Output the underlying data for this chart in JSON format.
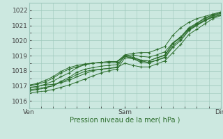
{
  "title": "",
  "xlabel": "Pression niveau de la mer( hPa )",
  "ylabel": "",
  "bg_color": "#cce8e0",
  "grid_color": "#9ec8bc",
  "line_color": "#2d6e2d",
  "marker_color": "#2d6e2d",
  "ylim": [
    1015.5,
    1022.5
  ],
  "yticks": [
    1016,
    1017,
    1018,
    1019,
    1020,
    1021,
    1022
  ],
  "xlim": [
    0,
    48
  ],
  "xtick_positions": [
    0,
    24,
    48
  ],
  "xtick_labels": [
    "Ven",
    "Sam",
    "Dim"
  ],
  "lines": [
    [
      0.0,
      1016.9,
      2.0,
      1016.95,
      4.0,
      1017.05,
      6.0,
      1017.1,
      8.0,
      1017.2,
      10.0,
      1017.35,
      12.0,
      1017.6,
      14.0,
      1017.8,
      16.0,
      1018.0,
      18.0,
      1018.1,
      20.0,
      1018.15,
      22.0,
      1018.25,
      24.0,
      1019.0,
      26.0,
      1019.05,
      28.0,
      1018.95,
      30.0,
      1018.9,
      32.0,
      1019.05,
      34.0,
      1019.25,
      36.0,
      1019.85,
      38.0,
      1020.25,
      40.0,
      1020.75,
      42.0,
      1021.05,
      44.0,
      1021.35,
      46.0,
      1021.6,
      48.0,
      1021.8
    ],
    [
      0.0,
      1016.5,
      2.0,
      1016.6,
      4.0,
      1016.65,
      6.0,
      1016.75,
      8.0,
      1016.9,
      10.0,
      1017.05,
      12.0,
      1017.25,
      14.0,
      1017.45,
      16.0,
      1017.65,
      18.0,
      1017.85,
      20.0,
      1018.0,
      22.0,
      1018.1,
      24.0,
      1018.85,
      26.0,
      1018.8,
      28.0,
      1018.65,
      30.0,
      1018.55,
      32.0,
      1018.7,
      34.0,
      1018.85,
      36.0,
      1019.55,
      38.0,
      1020.0,
      40.0,
      1020.65,
      42.0,
      1021.0,
      44.0,
      1021.3,
      46.0,
      1021.55,
      48.0,
      1021.7
    ],
    [
      0.0,
      1016.75,
      2.0,
      1016.8,
      4.0,
      1016.9,
      6.0,
      1017.0,
      8.0,
      1017.3,
      10.0,
      1017.55,
      12.0,
      1017.9,
      14.0,
      1018.1,
      16.0,
      1018.2,
      18.0,
      1018.3,
      20.0,
      1018.35,
      22.0,
      1018.4,
      24.0,
      1018.95,
      26.0,
      1018.8,
      28.0,
      1018.55,
      30.0,
      1018.5,
      32.0,
      1018.7,
      34.0,
      1018.9,
      36.0,
      1019.65,
      38.0,
      1020.1,
      40.0,
      1020.7,
      42.0,
      1021.0,
      44.0,
      1021.35,
      46.0,
      1021.55,
      48.0,
      1021.7
    ],
    [
      0.0,
      1016.85,
      2.0,
      1016.95,
      4.0,
      1017.1,
      6.0,
      1017.3,
      8.0,
      1017.6,
      10.0,
      1017.85,
      12.0,
      1018.2,
      14.0,
      1018.4,
      16.0,
      1018.5,
      18.0,
      1018.55,
      20.0,
      1018.6,
      22.0,
      1018.6,
      24.0,
      1018.95,
      26.0,
      1018.85,
      28.0,
      1018.7,
      30.0,
      1018.65,
      32.0,
      1018.85,
      34.0,
      1019.0,
      36.0,
      1019.8,
      38.0,
      1020.2,
      40.0,
      1020.8,
      42.0,
      1021.1,
      44.0,
      1021.45,
      46.0,
      1021.65,
      48.0,
      1021.8
    ],
    [
      0.0,
      1017.0,
      2.0,
      1017.1,
      4.0,
      1017.25,
      6.0,
      1017.5,
      8.0,
      1017.85,
      10.0,
      1018.1,
      12.0,
      1018.25,
      14.0,
      1018.4,
      16.0,
      1018.5,
      18.0,
      1018.55,
      20.0,
      1018.55,
      22.0,
      1018.55,
      24.0,
      1019.0,
      26.0,
      1018.9,
      28.0,
      1018.7,
      30.0,
      1018.65,
      32.0,
      1018.85,
      34.0,
      1019.05,
      36.0,
      1019.8,
      38.0,
      1020.25,
      40.0,
      1020.85,
      42.0,
      1021.15,
      44.0,
      1021.5,
      46.0,
      1021.7,
      48.0,
      1021.85
    ],
    [
      0.0,
      1017.05,
      2.0,
      1017.15,
      4.0,
      1017.35,
      6.0,
      1017.6,
      8.0,
      1017.95,
      10.0,
      1018.2,
      12.0,
      1018.35,
      14.0,
      1018.45,
      16.0,
      1018.5,
      18.0,
      1018.55,
      20.0,
      1018.6,
      22.0,
      1018.6,
      24.0,
      1019.05,
      26.0,
      1019.15,
      28.0,
      1019.2,
      30.0,
      1019.2,
      32.0,
      1019.4,
      34.0,
      1019.6,
      36.0,
      1020.35,
      38.0,
      1020.85,
      40.0,
      1021.2,
      42.0,
      1021.45,
      44.0,
      1021.6,
      46.0,
      1021.75,
      48.0,
      1021.9
    ],
    [
      0.0,
      1016.65,
      2.0,
      1016.75,
      4.0,
      1016.85,
      6.0,
      1017.0,
      8.0,
      1017.25,
      10.0,
      1017.45,
      12.0,
      1017.75,
      14.0,
      1017.95,
      16.0,
      1018.05,
      18.0,
      1018.1,
      20.0,
      1018.15,
      22.0,
      1018.2,
      24.0,
      1018.5,
      26.0,
      1018.35,
      28.0,
      1018.25,
      30.0,
      1018.25,
      32.0,
      1018.45,
      34.0,
      1018.65,
      36.0,
      1019.2,
      38.0,
      1019.75,
      40.0,
      1020.4,
      42.0,
      1020.75,
      44.0,
      1021.1,
      46.0,
      1021.45,
      48.0,
      1021.65
    ]
  ]
}
